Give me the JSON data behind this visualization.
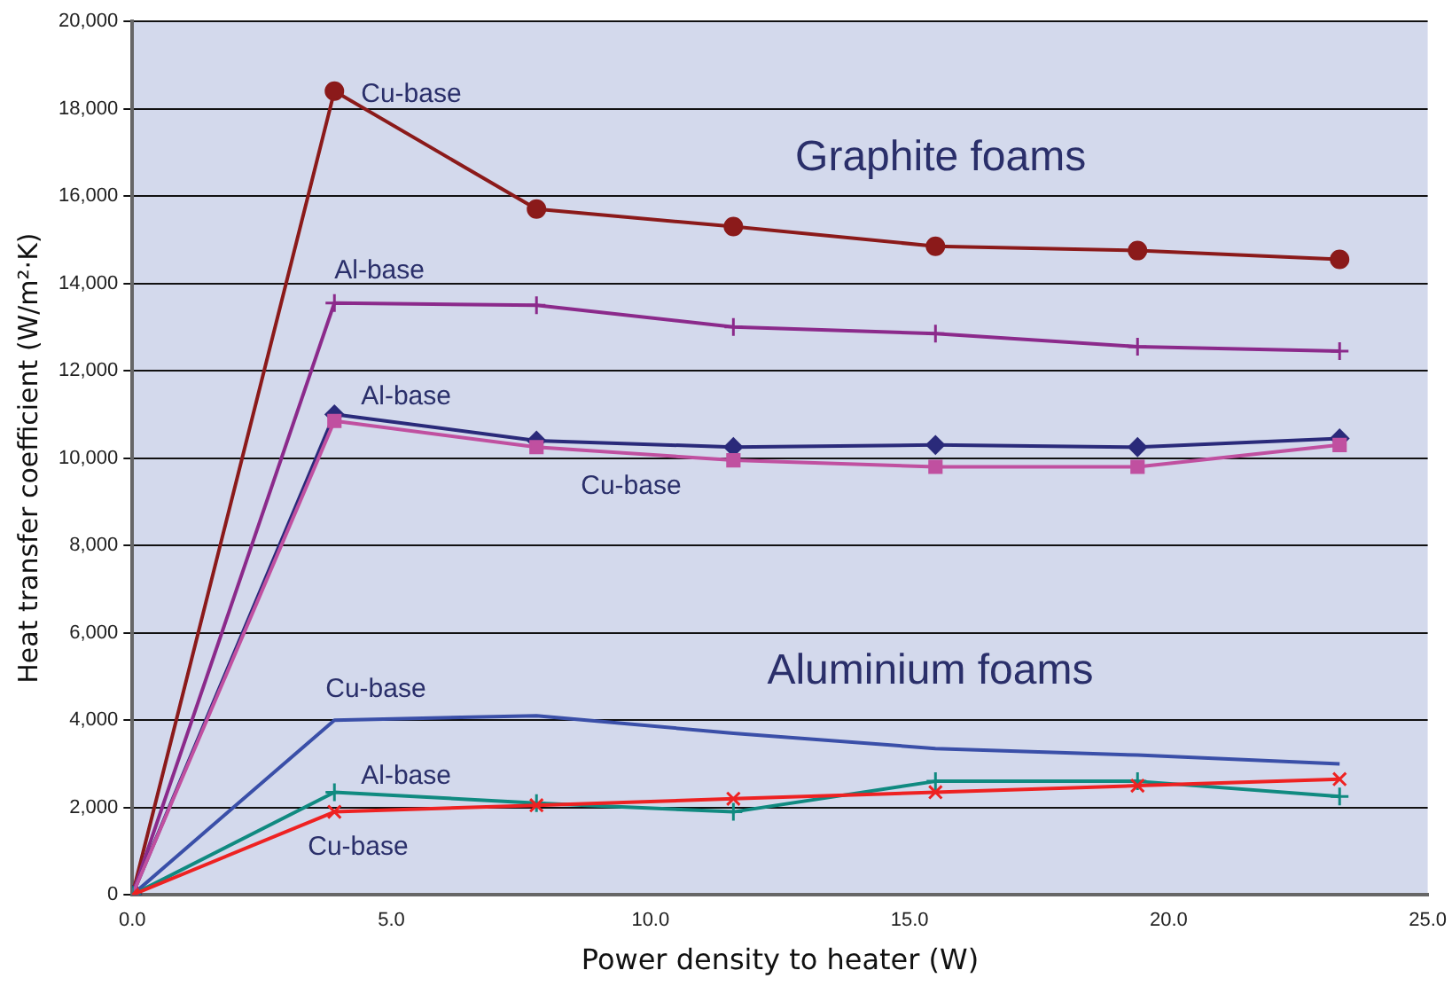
{
  "chart_data": {
    "type": "line",
    "xlabel": "Power density to heater (W)",
    "ylabel": "Heat transfer coefficient (W/m²·K)",
    "x": [
      0,
      3.9,
      7.8,
      11.6,
      15.5,
      19.4,
      23.3
    ],
    "series": [
      {
        "name": "Cu-base",
        "color": "#8b1a1a",
        "marker": "circle",
        "values": [
          0,
          18400,
          15700,
          15300,
          14850,
          14750,
          14550
        ]
      },
      {
        "name": "Al-base",
        "color": "#8b2a8b",
        "marker": "cross",
        "values": [
          0,
          13550,
          13500,
          13000,
          12850,
          12550,
          12450
        ]
      },
      {
        "name": "Al-base",
        "color": "#2a2a7a",
        "marker": "diamond",
        "values": [
          0,
          11000,
          10400,
          10250,
          10300,
          10250,
          10450
        ]
      },
      {
        "name": "Cu-base",
        "color": "#c050a0",
        "marker": "square",
        "values": [
          0,
          10850,
          10250,
          9950,
          9800,
          9800,
          10300
        ]
      },
      {
        "name": "Cu-base",
        "color": "#3a4fa8",
        "marker": "none",
        "values": [
          0,
          4000,
          4100,
          3700,
          3350,
          3200,
          3000
        ]
      },
      {
        "name": "Al-base",
        "color": "#108a80",
        "marker": "cross",
        "values": [
          0,
          2350,
          2100,
          1900,
          2600,
          2600,
          2250
        ]
      },
      {
        "name": "Cu-base",
        "color": "#ee2222",
        "marker": "x",
        "values": [
          0,
          1900,
          2050,
          2200,
          2350,
          2500,
          2650
        ]
      }
    ],
    "annotations": [
      "Graphite foams",
      "Aluminium foams"
    ],
    "xlim": [
      0,
      25
    ],
    "xticks": [
      {
        "value": 0,
        "label": "0.0"
      },
      {
        "value": 5,
        "label": "5.0"
      },
      {
        "value": 10,
        "label": "10.0"
      },
      {
        "value": 15,
        "label": "15.0"
      },
      {
        "value": 20,
        "label": "20.0"
      },
      {
        "value": 25,
        "label": "25.0"
      }
    ],
    "ylim": [
      0,
      20000
    ],
    "yticks": [
      {
        "value": 0,
        "label": "0"
      },
      {
        "value": 2000,
        "label": "2,000"
      },
      {
        "value": 4000,
        "label": "4,000"
      },
      {
        "value": 6000,
        "label": "6,000"
      },
      {
        "value": 8000,
        "label": "8,000"
      },
      {
        "value": 10000,
        "label": "10,000"
      },
      {
        "value": 12000,
        "label": "12,000"
      },
      {
        "value": 14000,
        "label": "14,000"
      },
      {
        "value": 16000,
        "label": "16,000"
      },
      {
        "value": 18000,
        "label": "18,000"
      },
      {
        "value": 20000,
        "label": "20,000"
      }
    ],
    "grid": "y",
    "legend": false
  }
}
